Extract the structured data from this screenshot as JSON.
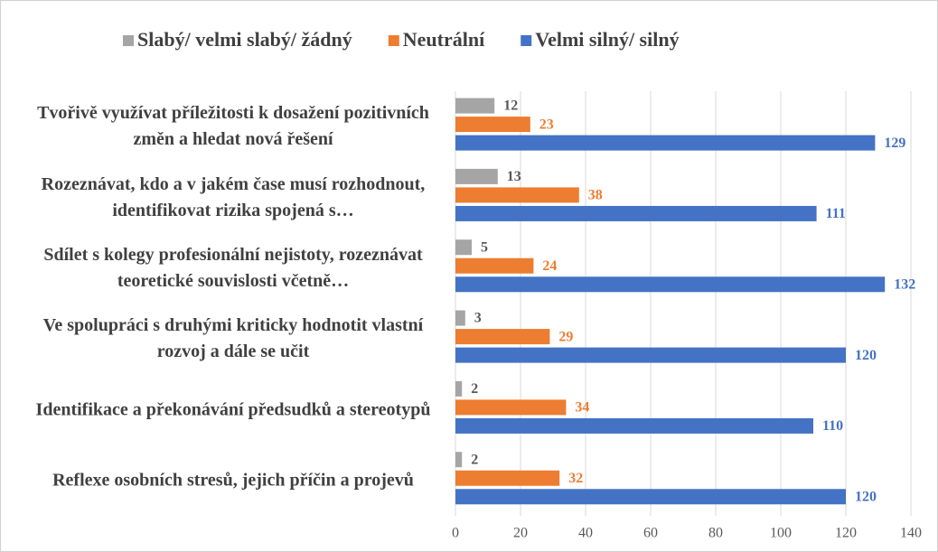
{
  "chart_data": {
    "type": "bar",
    "orientation": "horizontal",
    "categories": [
      "Tvořivě využívat příležitosti k dosažení pozitivních změn a hledat nová řešení",
      "Rozeznávat, kdo a v jakém čase musí rozhodnout, identifikovat rizika spojená s…",
      "Sdílet s kolegy profesionální nejistoty, rozeznávat teoretické souvislosti včetně…",
      "Ve spolupráci s druhými kriticky hodnotit vlastní rozvoj a dále se učit",
      "Identifikace a překonávání předsudků a stereotypů",
      "Reflexe osobních stresů, jejich příčin a projevů"
    ],
    "series": [
      {
        "name": "Slabý/ velmi slabý/ žádný",
        "color": "#a5a5a5",
        "label_color": "#595959",
        "values": [
          12,
          13,
          5,
          3,
          2,
          2
        ]
      },
      {
        "name": "Neutrální",
        "color": "#ed7d31",
        "label_color": "#ed7d31",
        "values": [
          23,
          38,
          24,
          29,
          34,
          32
        ]
      },
      {
        "name": "Velmi silný/ silný",
        "color": "#4472c4",
        "label_color": "#4472c4",
        "values": [
          129,
          111,
          132,
          120,
          110,
          120
        ]
      }
    ],
    "xlim": [
      0,
      140
    ],
    "xticks": [
      0,
      20,
      40,
      60,
      80,
      100,
      120,
      140
    ],
    "grid": true,
    "legend": "top"
  }
}
